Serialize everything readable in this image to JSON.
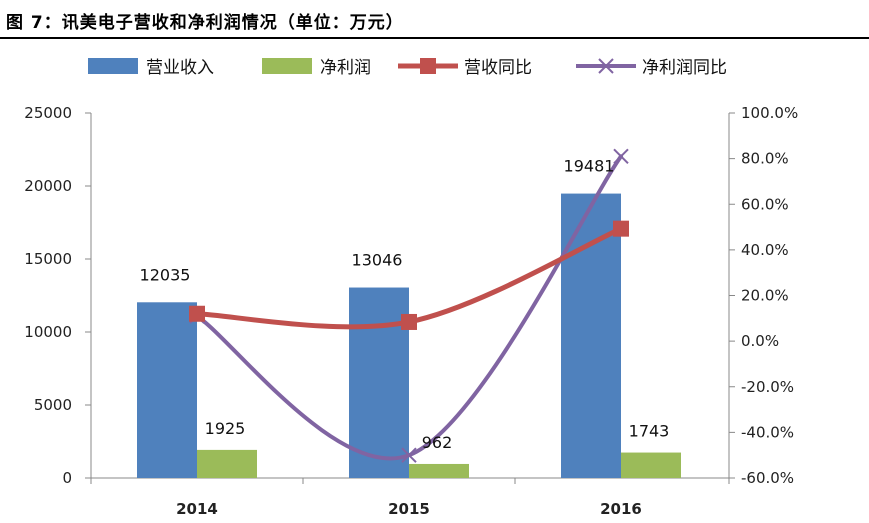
{
  "figure": {
    "title": "图 7：讯美电子营收和净利润情况（单位：万元）"
  },
  "chart_data": {
    "type": "bar",
    "categories": [
      "2014",
      "2015",
      "2016"
    ],
    "series": [
      {
        "name": "营业收入",
        "kind": "bar",
        "axis": "left",
        "values": [
          12035,
          13046,
          19481
        ],
        "color": "#4f81bd"
      },
      {
        "name": "净利润",
        "kind": "bar",
        "axis": "left",
        "values": [
          1925,
          962,
          1743
        ],
        "color": "#9bbb59"
      },
      {
        "name": "营收同比",
        "kind": "line",
        "axis": "right",
        "values": [
          12.0,
          8.4,
          49.3
        ],
        "color": "#c0504d",
        "marker": "square"
      },
      {
        "name": "净利润同比",
        "kind": "line",
        "axis": "right",
        "values": [
          11.0,
          -50.0,
          81.0
        ],
        "color": "#8064a2",
        "marker": "x"
      }
    ],
    "data_labels": [
      "12035",
      "13046",
      "19481",
      "1925",
      "962",
      "1743"
    ],
    "ylim_left": [
      0,
      25000
    ],
    "ylim_right": [
      -60,
      100
    ],
    "yticks_left": [
      "0",
      "5000",
      "10000",
      "15000",
      "20000",
      "25000"
    ],
    "yticks_right": [
      "-60.0%",
      "-40.0%",
      "-20.0%",
      "0.0%",
      "20.0%",
      "40.0%",
      "60.0%",
      "80.0%",
      "100.0%"
    ],
    "legend_position": "top",
    "grid": false
  }
}
